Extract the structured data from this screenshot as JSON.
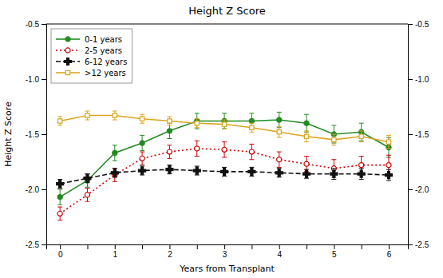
{
  "chart_data": {
    "type": "line",
    "title": "Height Z Score",
    "xlabel": "Years from Transplant",
    "ylabel": "Height Z Score",
    "x": [
      0,
      0.5,
      1,
      1.5,
      2,
      2.5,
      3,
      3.5,
      4,
      4.5,
      5,
      5.5,
      6
    ],
    "xlim": [
      -0.25,
      6.35
    ],
    "xticks": [
      0,
      {
        "value": 0.5,
        "label": null
      },
      1,
      {
        "value": 1.5,
        "label": null
      },
      2,
      {
        "value": 2.5,
        "label": null
      },
      3,
      {
        "value": 3.5,
        "label": null
      },
      4,
      {
        "value": 4.5,
        "label": null
      },
      5,
      {
        "value": 5.5,
        "label": null
      },
      6
    ],
    "ylim": [
      -2.5,
      -0.5
    ],
    "yticks": [
      -2.5,
      {
        "value": -2.0,
        "label": "-2.0"
      },
      -1.5,
      {
        "value": -1.0,
        "label": "-1.0"
      },
      -0.5
    ],
    "grid": false,
    "legend": "upper-left",
    "series": [
      {
        "name": "0-1 years",
        "color": "#228B22",
        "line_style": "solid",
        "marker": "circle",
        "values": [
          -2.07,
          -1.92,
          -1.67,
          -1.58,
          -1.47,
          -1.38,
          -1.38,
          -1.38,
          -1.37,
          -1.4,
          -1.5,
          -1.48,
          -1.62
        ],
        "errors": [
          0.07,
          0.06,
          0.07,
          0.07,
          0.07,
          0.07,
          0.07,
          0.07,
          0.07,
          0.08,
          0.08,
          0.08,
          0.09
        ]
      },
      {
        "name": "2-5 years",
        "color": "#CC0000",
        "line_style": "dotted",
        "marker": "circle-open",
        "values": [
          -2.22,
          -2.05,
          -1.87,
          -1.72,
          -1.66,
          -1.63,
          -1.64,
          -1.66,
          -1.73,
          -1.77,
          -1.81,
          -1.78,
          -1.78
        ],
        "errors": [
          0.06,
          0.06,
          0.06,
          0.06,
          0.06,
          0.07,
          0.07,
          0.07,
          0.07,
          0.07,
          0.08,
          0.08,
          0.09
        ]
      },
      {
        "name": "6-12 years",
        "color": "#111111",
        "line_style": "dashed",
        "marker": "plus",
        "values": [
          -1.95,
          -1.9,
          -1.85,
          -1.83,
          -1.82,
          -1.83,
          -1.84,
          -1.84,
          -1.85,
          -1.86,
          -1.86,
          -1.86,
          -1.87
        ],
        "errors": [
          0.04,
          0.04,
          0.04,
          0.04,
          0.04,
          0.04,
          0.04,
          0.04,
          0.04,
          0.04,
          0.05,
          0.05,
          0.05
        ]
      },
      {
        "name": ">12 years",
        "color": "#DAA520",
        "line_style": "solid",
        "marker": "square-open",
        "values": [
          -1.38,
          -1.33,
          -1.33,
          -1.36,
          -1.38,
          -1.4,
          -1.41,
          -1.44,
          -1.48,
          -1.52,
          -1.55,
          -1.52,
          -1.57
        ],
        "errors": [
          0.04,
          0.04,
          0.04,
          0.04,
          0.04,
          0.04,
          0.04,
          0.04,
          0.05,
          0.05,
          0.05,
          0.05,
          0.06
        ]
      }
    ]
  }
}
